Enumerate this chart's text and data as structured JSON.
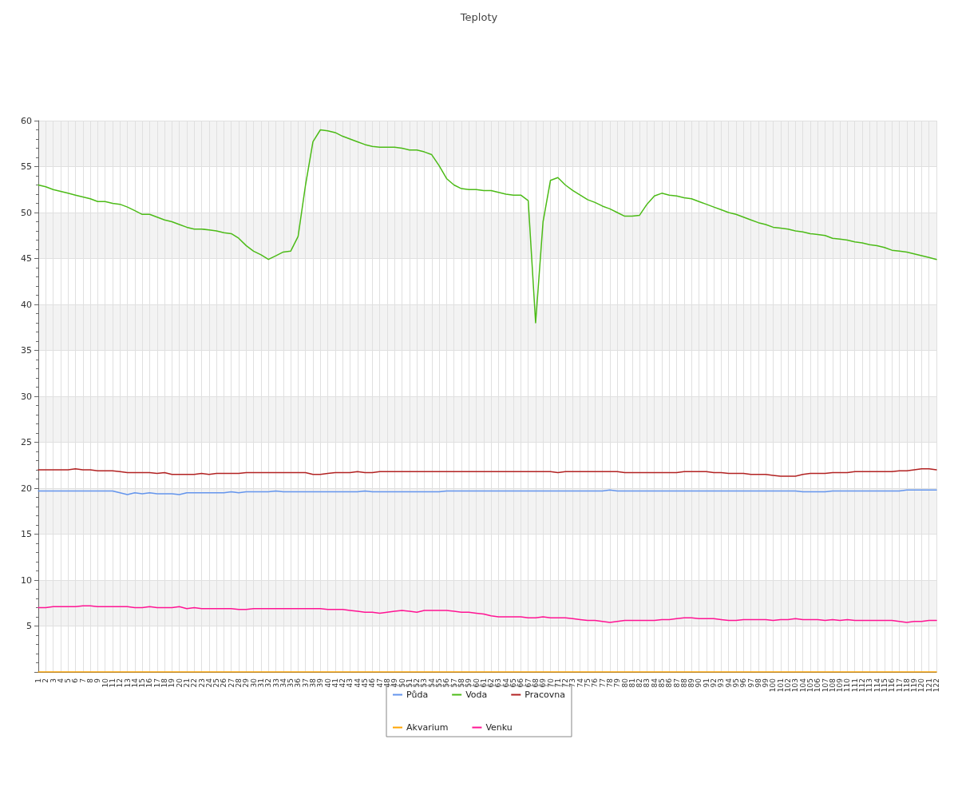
{
  "chart_data": {
    "type": "line",
    "title": "Teploty",
    "categories": [
      "1",
      "2",
      "3",
      "4",
      "5",
      "6",
      "7",
      "8",
      "9",
      "10",
      "11",
      "12",
      "13",
      "14",
      "15",
      "16",
      "17",
      "18",
      "19",
      "20",
      "21",
      "22",
      "23",
      "24",
      "25",
      "26",
      "27",
      "28",
      "29",
      "30",
      "31",
      "32",
      "33",
      "34",
      "35",
      "36",
      "37",
      "38",
      "39",
      "40",
      "41",
      "42",
      "43",
      "44",
      "45",
      "46",
      "47",
      "48",
      "49",
      "50",
      "51",
      "52",
      "53",
      "54",
      "55",
      "56",
      "57",
      "58",
      "59",
      "60",
      "61",
      "62",
      "63",
      "64",
      "65",
      "66",
      "67",
      "68",
      "69",
      "70",
      "71",
      "72",
      "73",
      "74",
      "75",
      "76",
      "77",
      "78",
      "79",
      "80",
      "81",
      "82",
      "83",
      "84",
      "85",
      "86",
      "87",
      "88",
      "89",
      "90",
      "91",
      "92",
      "93",
      "94",
      "95",
      "96",
      "97",
      "98",
      "99",
      "100",
      "101",
      "102",
      "103",
      "104",
      "105",
      "106",
      "107",
      "108",
      "109",
      "110",
      "111",
      "112",
      "113",
      "114",
      "115",
      "116",
      "117",
      "118",
      "119",
      "120",
      "121",
      "122"
    ],
    "series": [
      {
        "name": "Půda",
        "color": "#6495ed",
        "values": [
          19.7,
          19.7,
          19.7,
          19.7,
          19.7,
          19.7,
          19.7,
          19.7,
          19.7,
          19.7,
          19.7,
          19.5,
          19.3,
          19.5,
          19.4,
          19.5,
          19.4,
          19.4,
          19.4,
          19.3,
          19.5,
          19.5,
          19.5,
          19.5,
          19.5,
          19.5,
          19.6,
          19.5,
          19.6,
          19.6,
          19.6,
          19.6,
          19.7,
          19.6,
          19.6,
          19.6,
          19.6,
          19.6,
          19.6,
          19.6,
          19.6,
          19.6,
          19.6,
          19.6,
          19.7,
          19.6,
          19.6,
          19.6,
          19.6,
          19.6,
          19.6,
          19.6,
          19.6,
          19.6,
          19.6,
          19.7,
          19.7,
          19.7,
          19.7,
          19.7,
          19.7,
          19.7,
          19.7,
          19.7,
          19.7,
          19.7,
          19.7,
          19.7,
          19.7,
          19.7,
          19.7,
          19.7,
          19.7,
          19.7,
          19.7,
          19.7,
          19.7,
          19.8,
          19.7,
          19.7,
          19.7,
          19.7,
          19.7,
          19.7,
          19.7,
          19.7,
          19.7,
          19.7,
          19.7,
          19.7,
          19.7,
          19.7,
          19.7,
          19.7,
          19.7,
          19.7,
          19.7,
          19.7,
          19.7,
          19.7,
          19.7,
          19.7,
          19.7,
          19.6,
          19.6,
          19.6,
          19.6,
          19.7,
          19.7,
          19.7,
          19.7,
          19.7,
          19.7,
          19.7,
          19.7,
          19.7,
          19.7,
          19.8,
          19.8,
          19.8,
          19.8,
          19.8
        ]
      },
      {
        "name": "Voda",
        "color": "#4cbb17",
        "values": [
          53.0,
          52.8,
          52.5,
          52.3,
          52.1,
          51.9,
          51.7,
          51.5,
          51.2,
          51.2,
          51.0,
          50.9,
          50.6,
          50.2,
          49.8,
          49.8,
          49.5,
          49.2,
          49.0,
          48.7,
          48.4,
          48.2,
          48.2,
          48.1,
          48.0,
          47.8,
          47.7,
          47.2,
          46.4,
          45.8,
          45.4,
          44.9,
          45.3,
          45.7,
          45.8,
          47.4,
          53.0,
          57.7,
          59.0,
          58.9,
          58.7,
          58.3,
          58.0,
          57.7,
          57.4,
          57.2,
          57.1,
          57.1,
          57.1,
          57.0,
          56.8,
          56.8,
          56.6,
          56.3,
          55.1,
          53.7,
          53.0,
          52.6,
          52.5,
          52.5,
          52.4,
          52.4,
          52.2,
          52.0,
          51.9,
          51.9,
          51.3,
          38.0,
          49.0,
          53.5,
          53.8,
          53.0,
          52.4,
          51.9,
          51.4,
          51.1,
          50.7,
          50.4,
          50.0,
          49.6,
          49.6,
          49.7,
          50.9,
          51.8,
          52.1,
          51.9,
          51.8,
          51.6,
          51.5,
          51.2,
          50.9,
          50.6,
          50.3,
          50.0,
          49.8,
          49.5,
          49.2,
          48.9,
          48.7,
          48.4,
          48.3,
          48.2,
          48.0,
          47.9,
          47.7,
          47.6,
          47.5,
          47.2,
          47.1,
          47.0,
          46.8,
          46.7,
          46.5,
          46.4,
          46.2,
          45.9,
          45.8,
          45.7,
          45.5,
          45.3,
          45.1,
          44.9
        ]
      },
      {
        "name": "Pracovna",
        "color": "#b22222",
        "values": [
          22.0,
          22.0,
          22.0,
          22.0,
          22.0,
          22.1,
          22.0,
          22.0,
          21.9,
          21.9,
          21.9,
          21.8,
          21.7,
          21.7,
          21.7,
          21.7,
          21.6,
          21.7,
          21.5,
          21.5,
          21.5,
          21.5,
          21.6,
          21.5,
          21.6,
          21.6,
          21.6,
          21.6,
          21.7,
          21.7,
          21.7,
          21.7,
          21.7,
          21.7,
          21.7,
          21.7,
          21.7,
          21.5,
          21.5,
          21.6,
          21.7,
          21.7,
          21.7,
          21.8,
          21.7,
          21.7,
          21.8,
          21.8,
          21.8,
          21.8,
          21.8,
          21.8,
          21.8,
          21.8,
          21.8,
          21.8,
          21.8,
          21.8,
          21.8,
          21.8,
          21.8,
          21.8,
          21.8,
          21.8,
          21.8,
          21.8,
          21.8,
          21.8,
          21.8,
          21.8,
          21.7,
          21.8,
          21.8,
          21.8,
          21.8,
          21.8,
          21.8,
          21.8,
          21.8,
          21.7,
          21.7,
          21.7,
          21.7,
          21.7,
          21.7,
          21.7,
          21.7,
          21.8,
          21.8,
          21.8,
          21.8,
          21.7,
          21.7,
          21.6,
          21.6,
          21.6,
          21.5,
          21.5,
          21.5,
          21.4,
          21.3,
          21.3,
          21.3,
          21.5,
          21.6,
          21.6,
          21.6,
          21.7,
          21.7,
          21.7,
          21.8,
          21.8,
          21.8,
          21.8,
          21.8,
          21.8,
          21.9,
          21.9,
          22.0,
          22.1,
          22.1,
          22.0
        ]
      },
      {
        "name": "Akvarium",
        "color": "#ffa500",
        "values": [
          0,
          0,
          0,
          0,
          0,
          0,
          0,
          0,
          0,
          0,
          0,
          0,
          0,
          0,
          0,
          0,
          0,
          0,
          0,
          0,
          0,
          0,
          0,
          0,
          0,
          0,
          0,
          0,
          0,
          0,
          0,
          0,
          0,
          0,
          0,
          0,
          0,
          0,
          0,
          0,
          0,
          0,
          0,
          0,
          0,
          0,
          0,
          0,
          0,
          0,
          0,
          0,
          0,
          0,
          0,
          0,
          0,
          0,
          0,
          0,
          0,
          0,
          0,
          0,
          0,
          0,
          0,
          0,
          0,
          0,
          0,
          0,
          0,
          0,
          0,
          0,
          0,
          0,
          0,
          0,
          0,
          0,
          0,
          0,
          0,
          0,
          0,
          0,
          0,
          0,
          0,
          0,
          0,
          0,
          0,
          0,
          0,
          0,
          0,
          0,
          0,
          0,
          0,
          0,
          0,
          0,
          0,
          0,
          0,
          0,
          0,
          0,
          0,
          0,
          0,
          0,
          0,
          0,
          0,
          0,
          0,
          0
        ]
      },
      {
        "name": "Venku",
        "color": "#ff1493",
        "values": [
          7.0,
          7.0,
          7.1,
          7.1,
          7.1,
          7.1,
          7.2,
          7.2,
          7.1,
          7.1,
          7.1,
          7.1,
          7.1,
          7.0,
          7.0,
          7.1,
          7.0,
          7.0,
          7.0,
          7.1,
          6.9,
          7.0,
          6.9,
          6.9,
          6.9,
          6.9,
          6.9,
          6.8,
          6.8,
          6.9,
          6.9,
          6.9,
          6.9,
          6.9,
          6.9,
          6.9,
          6.9,
          6.9,
          6.9,
          6.8,
          6.8,
          6.8,
          6.7,
          6.6,
          6.5,
          6.5,
          6.4,
          6.5,
          6.6,
          6.7,
          6.6,
          6.5,
          6.7,
          6.7,
          6.7,
          6.7,
          6.6,
          6.5,
          6.5,
          6.4,
          6.3,
          6.1,
          6.0,
          6.0,
          6.0,
          6.0,
          5.9,
          5.9,
          6.0,
          5.9,
          5.9,
          5.9,
          5.8,
          5.7,
          5.6,
          5.6,
          5.5,
          5.4,
          5.5,
          5.6,
          5.6,
          5.6,
          5.6,
          5.6,
          5.7,
          5.7,
          5.8,
          5.9,
          5.9,
          5.8,
          5.8,
          5.8,
          5.7,
          5.6,
          5.6,
          5.7,
          5.7,
          5.7,
          5.7,
          5.6,
          5.7,
          5.7,
          5.8,
          5.7,
          5.7,
          5.7,
          5.6,
          5.7,
          5.6,
          5.7,
          5.6,
          5.6,
          5.6,
          5.6,
          5.6,
          5.6,
          5.5,
          5.4,
          5.5,
          5.5,
          5.6,
          5.6
        ]
      }
    ],
    "ylim": [
      0,
      60
    ],
    "yticks": [
      {
        "value": 0,
        "label": null
      },
      5,
      10,
      15,
      20,
      25,
      30,
      35,
      40,
      45,
      50,
      55,
      60
    ],
    "grid": true,
    "legend": "bottom",
    "marker": "none",
    "line_style": "solid"
  }
}
